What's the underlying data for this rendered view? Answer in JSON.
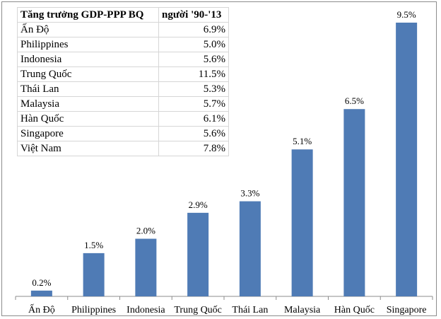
{
  "chart_data": {
    "type": "bar",
    "categories": [
      "Ấn Độ",
      "Philippines",
      "Indonesia",
      "Trung Quốc",
      "Thái Lan",
      "Malaysia",
      "Hàn Quốc",
      "Singapore"
    ],
    "values": [
      0.2,
      1.5,
      2.0,
      2.9,
      3.3,
      5.1,
      6.5,
      9.5
    ],
    "data_labels": [
      "0.2%",
      "1.5%",
      "2.0%",
      "2.9%",
      "3.3%",
      "5.1%",
      "6.5%",
      "9.5%"
    ],
    "title": "",
    "xlabel": "",
    "ylabel": "",
    "ylim": [
      0,
      10
    ],
    "grid": false,
    "legend": "none",
    "bar_color": "#4f7bb5"
  },
  "table": {
    "header_left": "Tăng trưởng GDP-PPP BQ",
    "header_right": "người '90-'13",
    "rows": [
      {
        "country": "Ấn Độ",
        "value": "6.9%"
      },
      {
        "country": "Philippines",
        "value": "5.0%"
      },
      {
        "country": "Indonesia",
        "value": "5.6%"
      },
      {
        "country": "Trung Quốc",
        "value": "11.5%"
      },
      {
        "country": "Thái Lan",
        "value": "5.3%"
      },
      {
        "country": "Malaysia",
        "value": "5.7%"
      },
      {
        "country": "Hàn Quốc",
        "value": "6.1%"
      },
      {
        "country": "Singapore",
        "value": "5.6%"
      },
      {
        "country": "Việt Nam",
        "value": "7.8%"
      }
    ]
  }
}
